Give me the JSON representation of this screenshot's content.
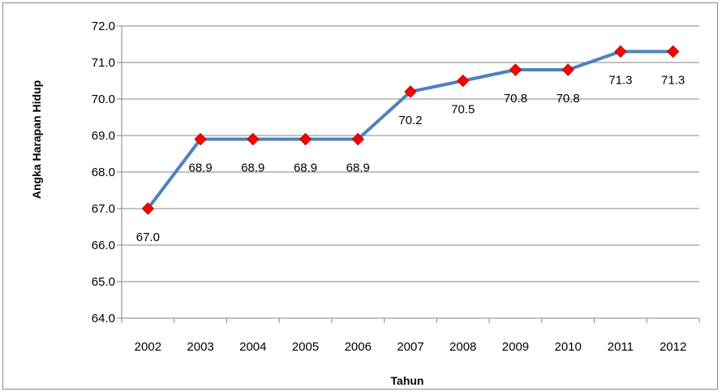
{
  "chart_data": {
    "type": "line",
    "title": "",
    "xlabel": "Tahun",
    "ylabel": "Angka Harapan Hidup",
    "ylim": [
      64.0,
      72.0
    ],
    "ytick_step": 1.0,
    "grid": true,
    "legend": "none",
    "categories": [
      "2002",
      "2003",
      "2004",
      "2005",
      "2006",
      "2007",
      "2008",
      "2009",
      "2010",
      "2011",
      "2012"
    ],
    "series": [
      {
        "values": [
          67.0,
          68.9,
          68.9,
          68.9,
          68.9,
          70.2,
          70.5,
          70.8,
          70.8,
          71.3,
          71.3
        ],
        "data_labels": [
          "67.0",
          "68.9",
          "68.9",
          "68.9",
          "68.9",
          "70.2",
          "70.5",
          "70.8",
          "70.8",
          "71.3",
          "71.3"
        ],
        "line_color": "#4f81bd",
        "marker_color": "#ff0000",
        "marker": "diamond"
      }
    ]
  }
}
